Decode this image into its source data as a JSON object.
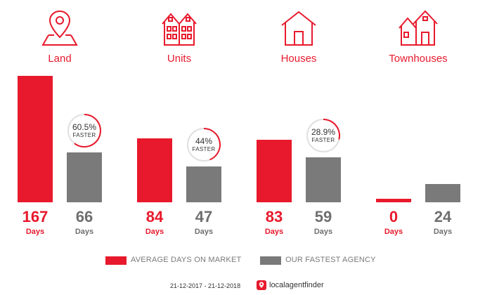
{
  "colors": {
    "accent": "#e8192c",
    "fastest": "#7a7a7a",
    "ring_track": "#e0e0e0"
  },
  "property_types": [
    {
      "label": "Land",
      "icon": "map-pin-icon"
    },
    {
      "label": "Units",
      "icon": "apartment-building-icon"
    },
    {
      "label": "Houses",
      "icon": "house-icon"
    },
    {
      "label": "Townhouses",
      "icon": "townhouses-icon"
    }
  ],
  "chart_data": {
    "type": "bar",
    "categories": [
      "Land",
      "Units",
      "Houses",
      "Townhouses"
    ],
    "series": [
      {
        "name": "AVERAGE DAYS ON MARKET",
        "values": [
          167,
          84,
          83,
          0
        ]
      },
      {
        "name": "OUR FASTEST AGENCY",
        "values": [
          66,
          47,
          59,
          24
        ]
      }
    ],
    "value_unit": "Days",
    "faster": [
      {
        "category": "Land",
        "label": "60.5%",
        "value": 60.5
      },
      {
        "category": "Units",
        "label": "44%",
        "value": 44
      },
      {
        "category": "Houses",
        "label": "28.9%",
        "value": 28.9
      }
    ],
    "faster_word": "FASTER",
    "legend_position": "bottom",
    "grid": false
  },
  "footer": {
    "date_range": "21-12-2017 - 21-12-2018",
    "brand_icon": "localagentfinder-logo-icon",
    "brand": "localagentfinder"
  }
}
